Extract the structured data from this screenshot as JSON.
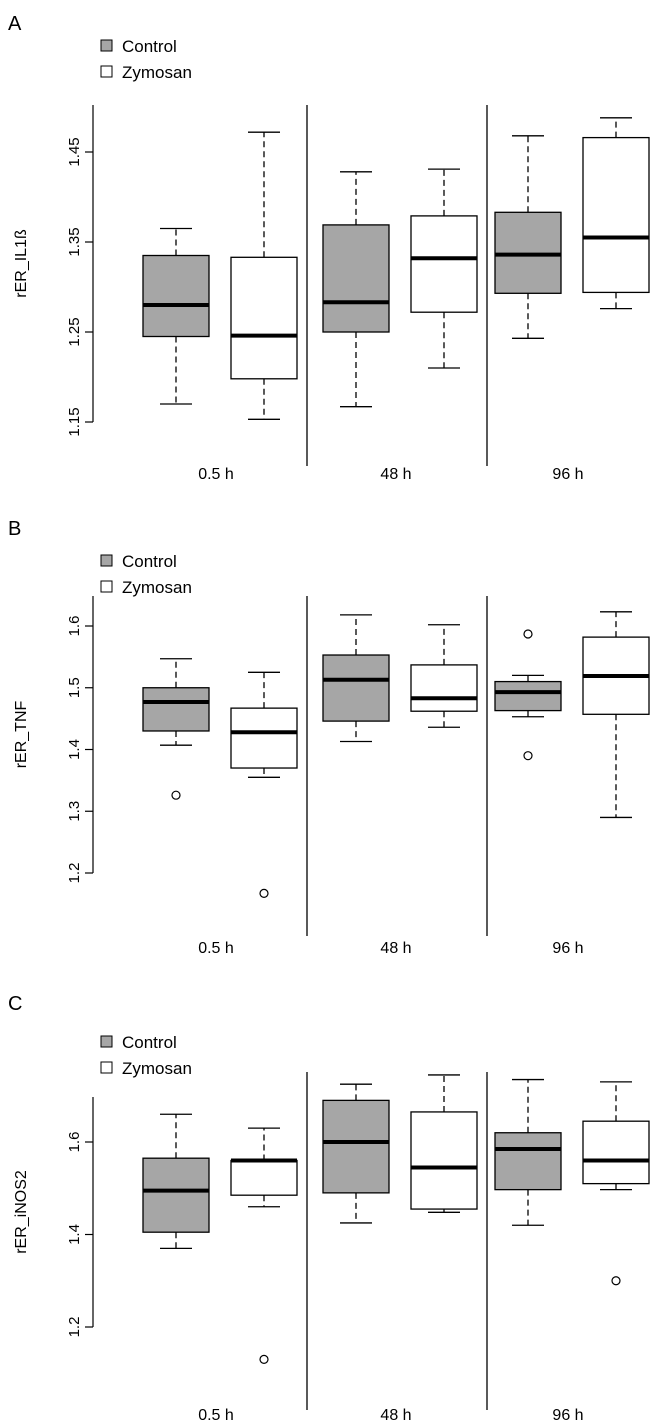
{
  "legend": {
    "control_label": "Control",
    "zymosan_label": "Zymosan",
    "control_color": "#a6a6a6",
    "zymosan_color": "#ffffff"
  },
  "chart_data": [
    {
      "panel_letter": "A",
      "type": "box",
      "ylabel": "rER_IL1ß",
      "categories": [
        "0.5 h",
        "48 h",
        "96 h"
      ],
      "yticks": [
        "1.15",
        "1.25",
        "1.35",
        "1.45"
      ],
      "ytick_values": [
        1.15,
        1.25,
        1.35,
        1.45
      ],
      "ylim": [
        1.15,
        1.5
      ],
      "series": [
        {
          "name": "Control",
          "color": "#a6a6a6",
          "boxes": [
            {
              "category": "0.5 h",
              "min": 1.17,
              "q1": 1.245,
              "median": 1.28,
              "q3": 1.335,
              "max": 1.365,
              "outliers": []
            },
            {
              "category": "48 h",
              "min": 1.167,
              "q1": 1.25,
              "median": 1.283,
              "q3": 1.369,
              "max": 1.428,
              "outliers": []
            },
            {
              "category": "96 h",
              "min": 1.243,
              "q1": 1.293,
              "median": 1.336,
              "q3": 1.383,
              "max": 1.468,
              "outliers": []
            }
          ]
        },
        {
          "name": "Zymosan",
          "color": "#ffffff",
          "boxes": [
            {
              "category": "0.5 h",
              "min": 1.153,
              "q1": 1.198,
              "median": 1.246,
              "q3": 1.333,
              "max": 1.472,
              "outliers": []
            },
            {
              "category": "48 h",
              "min": 1.21,
              "q1": 1.272,
              "median": 1.332,
              "q3": 1.379,
              "max": 1.431,
              "outliers": []
            },
            {
              "category": "96 h",
              "min": 1.276,
              "q1": 1.294,
              "median": 1.355,
              "q3": 1.466,
              "max": 1.488,
              "outliers": []
            }
          ]
        }
      ]
    },
    {
      "panel_letter": "B",
      "type": "box",
      "ylabel": "rER_TNF",
      "categories": [
        "0.5 h",
        "48 h",
        "96 h"
      ],
      "yticks": [
        "1.2",
        "1.3",
        "1.4",
        "1.5",
        "1.6"
      ],
      "ytick_values": [
        1.2,
        1.3,
        1.4,
        1.5,
        1.6
      ],
      "ylim": [
        1.2,
        1.6
      ],
      "series": [
        {
          "name": "Control",
          "color": "#a6a6a6",
          "boxes": [
            {
              "category": "0.5 h",
              "min": 1.407,
              "q1": 1.43,
              "median": 1.477,
              "q3": 1.5,
              "max": 1.547,
              "outliers": [
                1.326
              ]
            },
            {
              "category": "48 h",
              "min": 1.413,
              "q1": 1.446,
              "median": 1.513,
              "q3": 1.553,
              "max": 1.618,
              "outliers": []
            },
            {
              "category": "96 h",
              "min": 1.453,
              "q1": 1.463,
              "median": 1.493,
              "q3": 1.51,
              "max": 1.52,
              "outliers": [
                1.587,
                1.39
              ]
            }
          ]
        },
        {
          "name": "Zymosan",
          "color": "#ffffff",
          "boxes": [
            {
              "category": "0.5 h",
              "min": 1.355,
              "q1": 1.37,
              "median": 1.428,
              "q3": 1.467,
              "max": 1.525,
              "outliers": [
                1.167
              ]
            },
            {
              "category": "48 h",
              "min": 1.436,
              "q1": 1.462,
              "median": 1.483,
              "q3": 1.537,
              "max": 1.602,
              "outliers": []
            },
            {
              "category": "96 h",
              "min": 1.29,
              "q1": 1.457,
              "median": 1.519,
              "q3": 1.582,
              "max": 1.623,
              "outliers": []
            }
          ]
        }
      ]
    },
    {
      "panel_letter": "C",
      "type": "box",
      "ylabel": "rER_iNOS2",
      "categories": [
        "0.5 h",
        "48 h",
        "96 h"
      ],
      "yticks": [
        "1.2",
        "1.4",
        "1.6"
      ],
      "ytick_values": [
        1.2,
        1.4,
        1.6
      ],
      "ylim": [
        1.2,
        1.7
      ],
      "series": [
        {
          "name": "Control",
          "color": "#a6a6a6",
          "boxes": [
            {
              "category": "0.5 h",
              "min": 1.37,
              "q1": 1.405,
              "median": 1.495,
              "q3": 1.565,
              "max": 1.66,
              "outliers": []
            },
            {
              "category": "48 h",
              "min": 1.425,
              "q1": 1.49,
              "median": 1.6,
              "q3": 1.69,
              "max": 1.725,
              "outliers": []
            },
            {
              "category": "96 h",
              "min": 1.42,
              "q1": 1.497,
              "median": 1.585,
              "q3": 1.62,
              "max": 1.735,
              "outliers": []
            }
          ]
        },
        {
          "name": "Zymosan",
          "color": "#ffffff",
          "boxes": [
            {
              "category": "0.5 h",
              "min": 1.46,
              "q1": 1.485,
              "median": 1.56,
              "q3": 1.56,
              "max": 1.63,
              "outliers": [
                1.13
              ]
            },
            {
              "category": "48 h",
              "min": 1.448,
              "q1": 1.455,
              "median": 1.545,
              "q3": 1.665,
              "max": 1.745,
              "outliers": []
            },
            {
              "category": "96 h",
              "min": 1.497,
              "q1": 1.51,
              "median": 1.56,
              "q3": 1.645,
              "max": 1.73,
              "outliers": [
                1.3
              ]
            }
          ]
        }
      ]
    }
  ]
}
